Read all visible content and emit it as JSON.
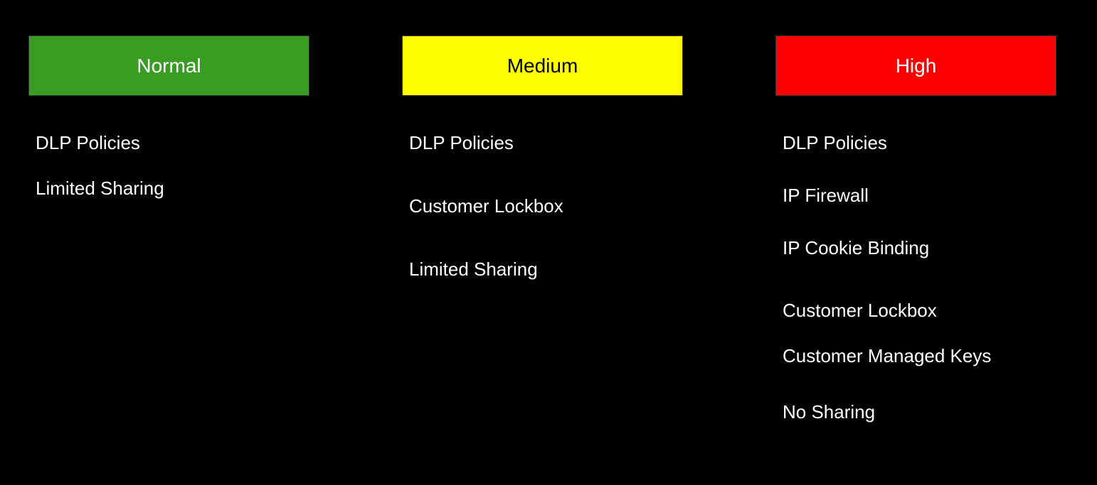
{
  "diagram": {
    "type": "infographic",
    "background_color": "#000000",
    "text_color": "#ffffff",
    "header_fontsize": 28,
    "item_fontsize": 26,
    "header_border_color": "#333333",
    "columns": [
      {
        "header": {
          "label": "Normal",
          "bg_color": "#3a9d23",
          "text_color": "#ffffff"
        },
        "items": [
          {
            "label": "DLP Policies",
            "gap_after": 30
          },
          {
            "label": "Limited Sharing",
            "gap_after": 30
          }
        ]
      },
      {
        "header": {
          "label": "Medium",
          "bg_color": "#ffff00",
          "text_color": "#000000"
        },
        "items": [
          {
            "label": "DLP Policies",
            "gap_after": 55
          },
          {
            "label": "Customer Lockbox",
            "gap_after": 55
          },
          {
            "label": "Limited Sharing",
            "gap_after": 30
          }
        ]
      },
      {
        "header": {
          "label": "High",
          "bg_color": "#ff0000",
          "text_color": "#ffffff"
        },
        "items": [
          {
            "label": "DLP Policies",
            "gap_after": 40
          },
          {
            "label": "IP Firewall",
            "gap_after": 40
          },
          {
            "label": "IP Cookie Binding",
            "gap_after": 55
          },
          {
            "label": "Customer Lockbox",
            "gap_after": 30
          },
          {
            "label": "Customer Managed Keys",
            "gap_after": 45
          },
          {
            "label": "No Sharing",
            "gap_after": 30
          }
        ]
      }
    ]
  }
}
